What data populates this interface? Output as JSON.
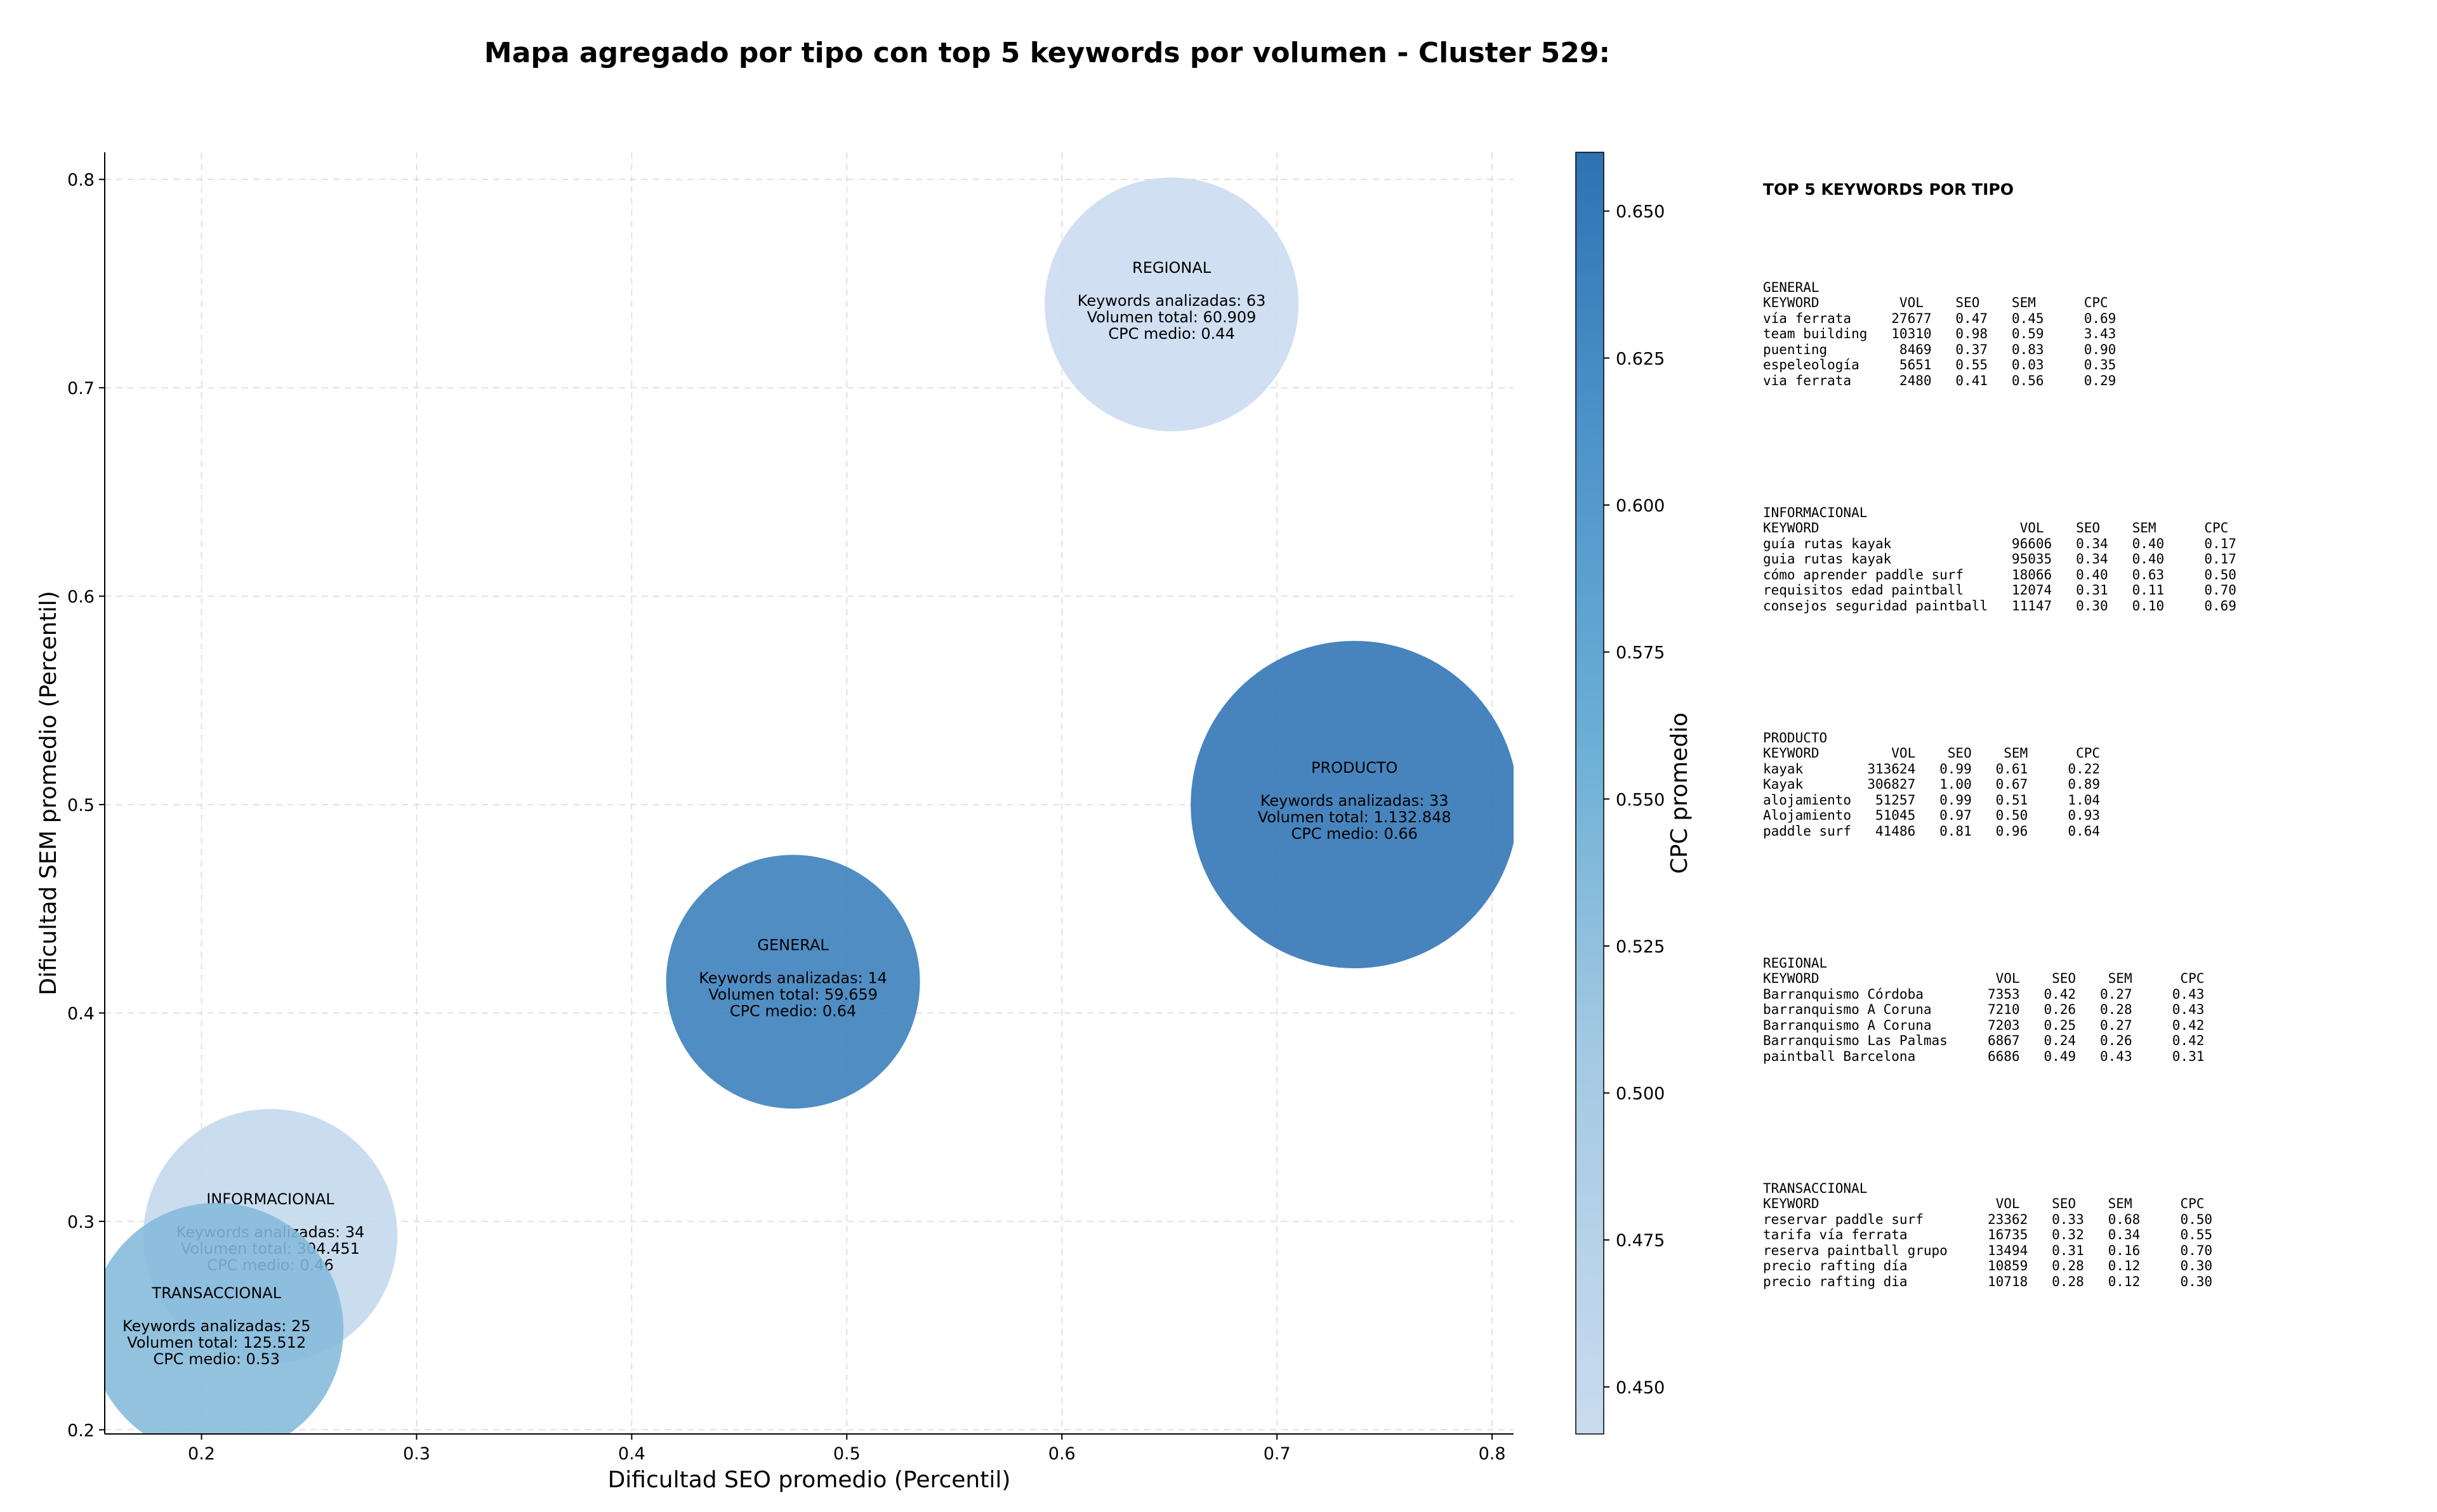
{
  "title": "Mapa agregado por tipo con top 5 keywords por volumen - Cluster 529:",
  "chart_data": {
    "type": "scatter",
    "xlabel": "Dificultad SEO promedio (Percentil)",
    "ylabel": "Dificultad SEM promedio (Percentil)",
    "colorbar_label": "CPC promedio",
    "xlim": [
      0.155,
      0.81
    ],
    "ylim": [
      0.198,
      0.813
    ],
    "x_ticks": [
      "0.2",
      "0.3",
      "0.4",
      "0.5",
      "0.6",
      "0.7",
      "0.8"
    ],
    "y_ticks": [
      "0.2",
      "0.3",
      "0.4",
      "0.5",
      "0.6",
      "0.7",
      "0.8"
    ],
    "colorbar_range": [
      0.442,
      0.66
    ],
    "colorbar_ticks": [
      "0.450",
      "0.475",
      "0.500",
      "0.525",
      "0.550",
      "0.575",
      "0.600",
      "0.625",
      "0.650"
    ],
    "grid": true,
    "bubbles": [
      {
        "type": "REGIONAL",
        "x": 0.651,
        "y": 0.74,
        "cpc": 0.44,
        "line1": "Keywords analizadas: 63",
        "line2": "Volumen total: 60.909",
        "line3": "CPC medio: 0.44",
        "volume": 60909
      },
      {
        "type": "PRODUCTO",
        "x": 0.736,
        "y": 0.5,
        "cpc": 0.66,
        "line1": "Keywords analizadas: 33",
        "line2": "Volumen total: 1.132.848",
        "line3": "CPC medio: 0.66",
        "volume": 1132848
      },
      {
        "type": "GENERAL",
        "x": 0.475,
        "y": 0.415,
        "cpc": 0.64,
        "line1": "Keywords analizadas: 14",
        "line2": "Volumen total: 59.659",
        "line3": "CPC medio: 0.64",
        "volume": 59659
      },
      {
        "type": "INFORMACIONAL",
        "x": 0.232,
        "y": 0.293,
        "cpc": 0.46,
        "line1": "Keywords analizadas: 34",
        "line2": "Volumen total: 304.451",
        "line3": "CPC medio: 0.46",
        "volume": 304451
      },
      {
        "type": "TRANSACCIONAL",
        "x": 0.207,
        "y": 0.248,
        "cpc": 0.53,
        "line1": "Keywords analizadas: 25",
        "line2": "Volumen total: 125.512",
        "line3": "CPC medio: 0.53",
        "volume": 125512
      }
    ]
  },
  "panel": {
    "heading": "TOP 5 KEYWORDS POR TIPO",
    "blocks": [
      {
        "title": "GENERAL",
        "header": "KEYWORD          VOL    SEO    SEM      CPC",
        "rows": [
          "vía ferrata     27677   0.47   0.45     0.69",
          "team building   10310   0.98   0.59     3.43",
          "puenting         8469   0.37   0.83     0.90",
          "espeleología     5651   0.55   0.03     0.35",
          "via ferrata      2480   0.41   0.56     0.29"
        ]
      },
      {
        "title": "INFORMACIONAL",
        "header": "KEYWORD                         VOL    SEO    SEM      CPC",
        "rows": [
          "guía rutas kayak               96606   0.34   0.40     0.17",
          "guia rutas kayak               95035   0.34   0.40     0.17",
          "cómo aprender paddle surf      18066   0.40   0.63     0.50",
          "requisitos edad paintball      12074   0.31   0.11     0.70",
          "consejos seguridad paintball   11147   0.30   0.10     0.69"
        ]
      },
      {
        "title": "PRODUCTO",
        "header": "KEYWORD         VOL    SEO    SEM      CPC",
        "rows": [
          "kayak        313624   0.99   0.61     0.22",
          "Kayak        306827   1.00   0.67     0.89",
          "alojamiento   51257   0.99   0.51     1.04",
          "Alojamiento   51045   0.97   0.50     0.93",
          "paddle surf   41486   0.81   0.96     0.64"
        ]
      },
      {
        "title": "REGIONAL",
        "header": "KEYWORD                      VOL    SEO    SEM      CPC",
        "rows": [
          "Barranquismo Córdoba        7353   0.42   0.27     0.43",
          "barranquismo A Coruna       7210   0.26   0.28     0.43",
          "Barranquismo A Coruna       7203   0.25   0.27     0.42",
          "Barranquismo Las Palmas     6867   0.24   0.26     0.42",
          "paintball Barcelona         6686   0.49   0.43     0.31"
        ]
      },
      {
        "title": "TRANSACCIONAL",
        "header": "KEYWORD                      VOL    SEO    SEM      CPC",
        "rows": [
          "reservar paddle surf        23362   0.33   0.68     0.50",
          "tarifa vía ferrata          16735   0.32   0.34     0.55",
          "reserva paintball grupo     13494   0.31   0.16     0.70",
          "precio rafting día          10859   0.28   0.12     0.30",
          "precio rafting dia          10718   0.28   0.12     0.30"
        ]
      }
    ]
  }
}
